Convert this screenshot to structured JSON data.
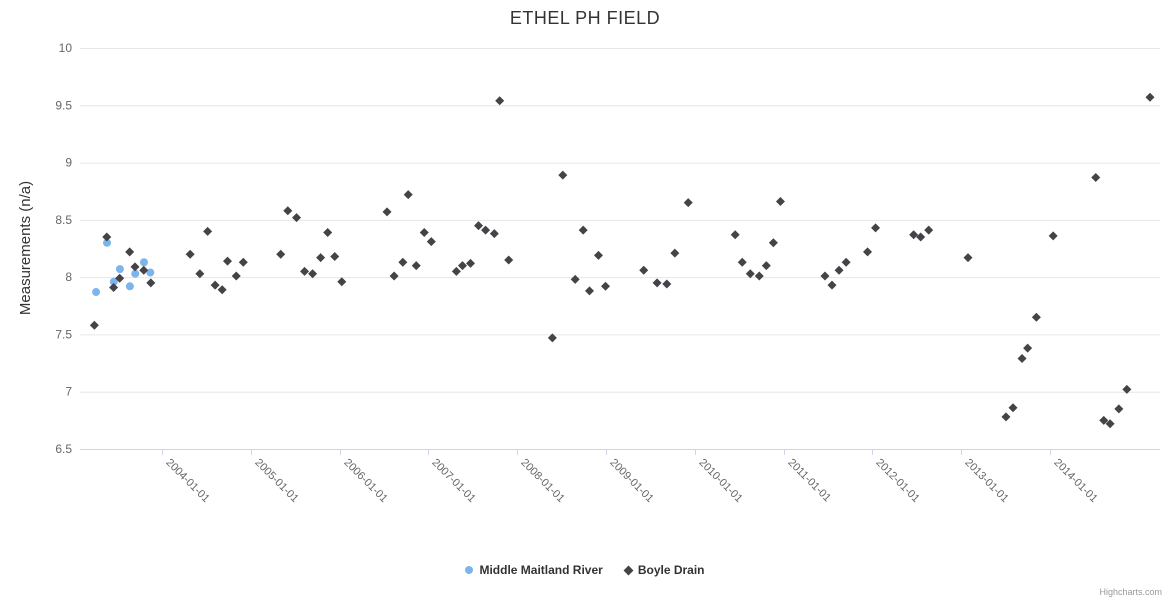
{
  "title": "ETHEL PH FIELD",
  "credits": "Highcharts.com",
  "colors": {
    "series_blue": "#7cb5ec",
    "series_dark": "#434348",
    "grid": "#e6e6e6",
    "axis_line": "#ccd6eb",
    "axis_label": "#666666",
    "title_text": "#333333",
    "credits_text": "#999999"
  },
  "chart_data": {
    "type": "scatter",
    "title": "ETHEL PH FIELD",
    "xlabel": "",
    "ylabel": "Measurements (n/a)",
    "ylim": [
      6.5,
      10
    ],
    "ytick_step": 0.5,
    "ytick_labels": [
      "6.5",
      "7",
      "7.5",
      "8",
      "8.5",
      "9",
      "9.5",
      "10"
    ],
    "xticks": [
      "2004-01-01",
      "2005-01-01",
      "2006-01-01",
      "2007-01-01",
      "2008-01-01",
      "2009-01-01",
      "2010-01-01",
      "2011-01-01",
      "2012-01-01",
      "2013-01-01",
      "2014-01-01"
    ],
    "grid": true,
    "legend_position": "bottom",
    "series": [
      {
        "name": "Middle Maitland River",
        "color": "#7cb5ec",
        "marker": "circle",
        "points": [
          [
            "2003-04-05",
            7.87
          ],
          [
            "2003-05-20",
            8.3
          ],
          [
            "2003-06-17",
            7.96
          ],
          [
            "2003-07-12",
            8.07
          ],
          [
            "2003-08-22",
            7.92
          ],
          [
            "2003-09-13",
            8.03
          ],
          [
            "2003-10-19",
            8.13
          ],
          [
            "2003-11-14",
            8.04
          ]
        ]
      },
      {
        "name": "Boyle Drain",
        "color": "#434348",
        "marker": "diamond",
        "points": [
          [
            "2003-03-29",
            7.58
          ],
          [
            "2003-05-19",
            8.35
          ],
          [
            "2003-06-16",
            7.91
          ],
          [
            "2003-07-11",
            7.99
          ],
          [
            "2003-08-21",
            8.22
          ],
          [
            "2003-09-12",
            8.09
          ],
          [
            "2003-10-18",
            8.06
          ],
          [
            "2003-11-16",
            7.95
          ],
          [
            "2004-04-26",
            8.2
          ],
          [
            "2004-06-05",
            8.03
          ],
          [
            "2004-07-07",
            8.4
          ],
          [
            "2004-08-07",
            7.93
          ],
          [
            "2004-09-05",
            7.89
          ],
          [
            "2004-09-27",
            8.14
          ],
          [
            "2004-11-02",
            8.01
          ],
          [
            "2004-12-01",
            8.13
          ],
          [
            "2005-05-04",
            8.2
          ],
          [
            "2005-06-02",
            8.58
          ],
          [
            "2005-07-08",
            8.52
          ],
          [
            "2005-08-10",
            8.05
          ],
          [
            "2005-09-12",
            8.03
          ],
          [
            "2005-10-15",
            8.17
          ],
          [
            "2005-11-13",
            8.39
          ],
          [
            "2005-12-12",
            8.18
          ],
          [
            "2006-01-10",
            7.96
          ],
          [
            "2006-07-15",
            8.57
          ],
          [
            "2006-08-13",
            8.01
          ],
          [
            "2006-09-18",
            8.13
          ],
          [
            "2006-10-10",
            8.72
          ],
          [
            "2006-11-12",
            8.1
          ],
          [
            "2006-12-15",
            8.39
          ],
          [
            "2007-01-13",
            8.31
          ],
          [
            "2007-04-26",
            8.05
          ],
          [
            "2007-05-21",
            8.1
          ],
          [
            "2007-06-23",
            8.12
          ],
          [
            "2007-07-26",
            8.45
          ],
          [
            "2007-08-24",
            8.41
          ],
          [
            "2007-09-29",
            8.38
          ],
          [
            "2007-10-21",
            9.54
          ],
          [
            "2007-11-27",
            8.15
          ],
          [
            "2008-05-25",
            7.47
          ],
          [
            "2008-07-07",
            8.89
          ],
          [
            "2008-08-27",
            7.98
          ],
          [
            "2008-09-29",
            8.41
          ],
          [
            "2008-10-25",
            7.88
          ],
          [
            "2008-12-01",
            8.19
          ],
          [
            "2008-12-30",
            7.92
          ],
          [
            "2009-06-05",
            8.06
          ],
          [
            "2009-07-30",
            7.95
          ],
          [
            "2009-09-08",
            7.94
          ],
          [
            "2009-10-11",
            8.21
          ],
          [
            "2009-12-05",
            8.65
          ],
          [
            "2010-06-16",
            8.37
          ],
          [
            "2010-07-15",
            8.13
          ],
          [
            "2010-08-17",
            8.03
          ],
          [
            "2010-09-23",
            8.01
          ],
          [
            "2010-10-22",
            8.1
          ],
          [
            "2010-11-20",
            8.3
          ],
          [
            "2010-12-19",
            8.66
          ],
          [
            "2011-06-20",
            8.01
          ],
          [
            "2011-07-19",
            7.93
          ],
          [
            "2011-08-17",
            8.06
          ],
          [
            "2011-09-15",
            8.13
          ],
          [
            "2011-12-12",
            8.22
          ],
          [
            "2012-01-14",
            8.43
          ],
          [
            "2012-06-19",
            8.37
          ],
          [
            "2012-07-18",
            8.35
          ],
          [
            "2012-08-20",
            8.41
          ],
          [
            "2013-01-29",
            8.17
          ],
          [
            "2013-07-04",
            6.78
          ],
          [
            "2013-08-02",
            6.86
          ],
          [
            "2013-09-08",
            7.29
          ],
          [
            "2013-10-01",
            7.38
          ],
          [
            "2013-11-06",
            7.65
          ],
          [
            "2014-01-14",
            8.36
          ],
          [
            "2014-07-08",
            8.87
          ],
          [
            "2014-08-10",
            6.75
          ],
          [
            "2014-09-05",
            6.72
          ],
          [
            "2014-10-11",
            6.85
          ],
          [
            "2014-11-13",
            7.02
          ],
          [
            "2015-02-16",
            9.57
          ]
        ]
      }
    ]
  }
}
